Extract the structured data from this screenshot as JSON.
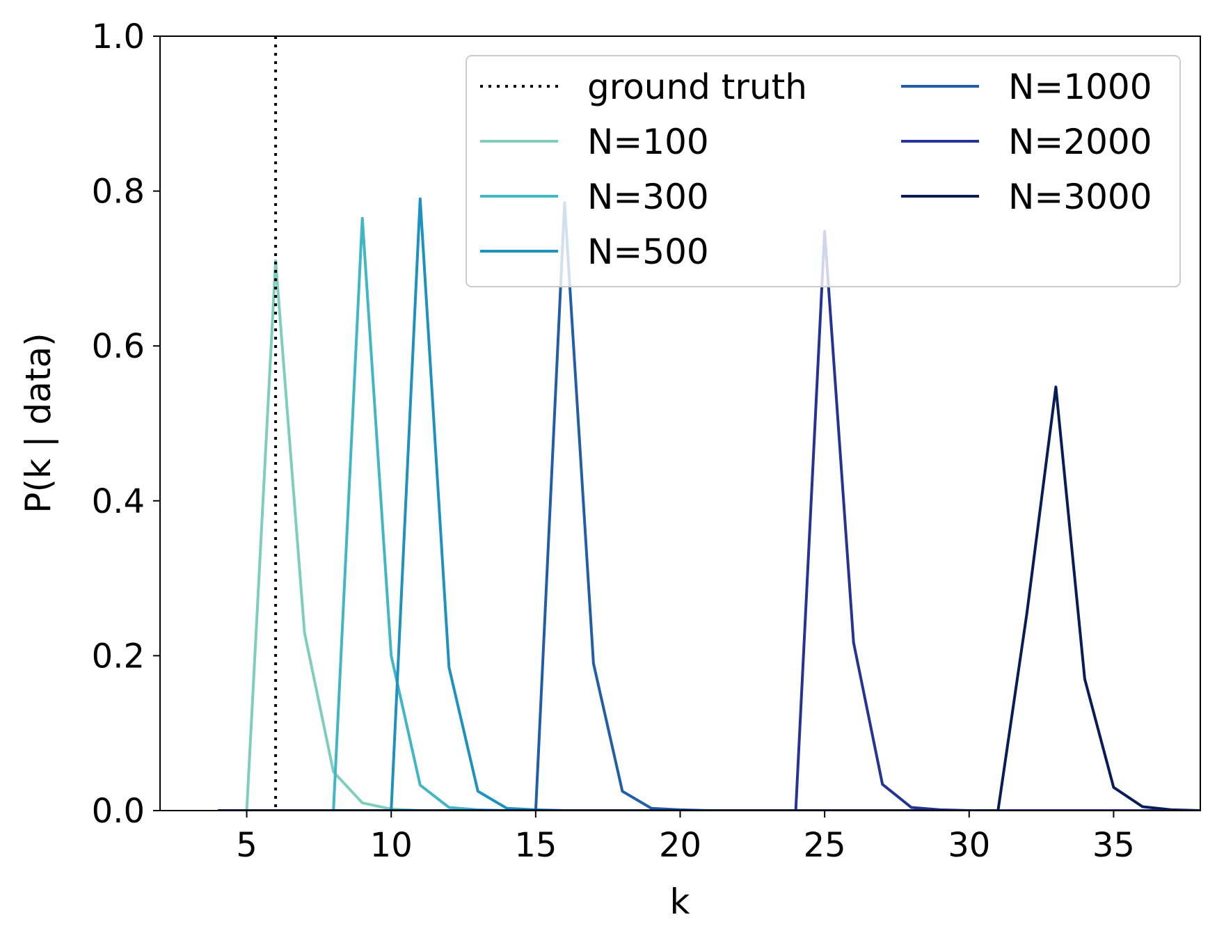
{
  "chart_data": {
    "type": "line",
    "xlabel": "k",
    "ylabel": "P(k | data)",
    "xlim": [
      2,
      38
    ],
    "ylim": [
      0,
      1.0
    ],
    "x_ticks": [
      5,
      10,
      15,
      20,
      25,
      30,
      35
    ],
    "x_tick_labels": [
      "5",
      "10",
      "15",
      "20",
      "25",
      "30",
      "35"
    ],
    "y_ticks": [
      0,
      0.2,
      0.4,
      0.6,
      0.8,
      1.0
    ],
    "y_tick_labels": [
      "0.0",
      "0.2",
      "0.4",
      "0.6",
      "0.8",
      "1.0"
    ],
    "grid": false,
    "legend_position": "top-right",
    "legend_columns": 2,
    "reference_line": {
      "name": "ground truth",
      "x": 6,
      "style": "dotted",
      "color": "#000000"
    },
    "series": [
      {
        "name": "N=100",
        "color": "#7fcdbb",
        "x": [
          4,
          5,
          6,
          7,
          8,
          9,
          10,
          11,
          12,
          13,
          14,
          15,
          16,
          17,
          18,
          19,
          20,
          21,
          22,
          23,
          24,
          25,
          26,
          27,
          28,
          29,
          30,
          31,
          32,
          33,
          34,
          35,
          36,
          37,
          38
        ],
        "y": [
          0,
          0,
          0.71,
          0.23,
          0.05,
          0.01,
          0.002,
          0,
          0,
          0,
          0,
          0,
          0,
          0,
          0,
          0,
          0,
          0,
          0,
          0,
          0,
          0,
          0,
          0,
          0,
          0,
          0,
          0,
          0,
          0,
          0,
          0,
          0,
          0,
          0
        ]
      },
      {
        "name": "N=300",
        "color": "#41b6c4",
        "x": [
          4,
          5,
          6,
          7,
          8,
          9,
          10,
          11,
          12,
          13,
          14,
          15,
          16,
          17,
          18,
          19,
          20,
          21,
          22,
          23,
          24,
          25,
          26,
          27,
          28,
          29,
          30,
          31,
          32,
          33,
          34,
          35,
          36,
          37,
          38
        ],
        "y": [
          0,
          0,
          0,
          0,
          0,
          0.765,
          0.2,
          0.033,
          0.004,
          0.001,
          0,
          0,
          0,
          0,
          0,
          0,
          0,
          0,
          0,
          0,
          0,
          0,
          0,
          0,
          0,
          0,
          0,
          0,
          0,
          0,
          0,
          0,
          0,
          0,
          0
        ]
      },
      {
        "name": "N=500",
        "color": "#1d91c0",
        "x": [
          4,
          5,
          6,
          7,
          8,
          9,
          10,
          11,
          12,
          13,
          14,
          15,
          16,
          17,
          18,
          19,
          20,
          21,
          22,
          23,
          24,
          25,
          26,
          27,
          28,
          29,
          30,
          31,
          32,
          33,
          34,
          35,
          36,
          37,
          38
        ],
        "y": [
          0,
          0,
          0,
          0,
          0,
          0,
          0,
          0.79,
          0.185,
          0.025,
          0.003,
          0.001,
          0,
          0,
          0,
          0,
          0,
          0,
          0,
          0,
          0,
          0,
          0,
          0,
          0,
          0,
          0,
          0,
          0,
          0,
          0,
          0,
          0,
          0,
          0
        ]
      },
      {
        "name": "N=1000",
        "color": "#225ea8",
        "x": [
          4,
          5,
          6,
          7,
          8,
          9,
          10,
          11,
          12,
          13,
          14,
          15,
          16,
          17,
          18,
          19,
          20,
          21,
          22,
          23,
          24,
          25,
          26,
          27,
          28,
          29,
          30,
          31,
          32,
          33,
          34,
          35,
          36,
          37,
          38
        ],
        "y": [
          0,
          0,
          0,
          0,
          0,
          0,
          0,
          0,
          0,
          0,
          0,
          0,
          0.785,
          0.19,
          0.025,
          0.003,
          0.001,
          0,
          0,
          0,
          0,
          0,
          0,
          0,
          0,
          0,
          0,
          0,
          0,
          0,
          0,
          0,
          0,
          0,
          0
        ]
      },
      {
        "name": "N=2000",
        "color": "#253494",
        "x": [
          4,
          5,
          6,
          7,
          8,
          9,
          10,
          11,
          12,
          13,
          14,
          15,
          16,
          17,
          18,
          19,
          20,
          21,
          22,
          23,
          24,
          25,
          26,
          27,
          28,
          29,
          30,
          31,
          32,
          33,
          34,
          35,
          36,
          37,
          38
        ],
        "y": [
          0,
          0,
          0,
          0,
          0,
          0,
          0,
          0,
          0,
          0,
          0,
          0,
          0,
          0,
          0,
          0,
          0,
          0,
          0,
          0,
          0,
          0.748,
          0.217,
          0.034,
          0.004,
          0.001,
          0,
          0,
          0,
          0,
          0,
          0,
          0,
          0,
          0
        ]
      },
      {
        "name": "N=3000",
        "color": "#081d58",
        "x": [
          4,
          5,
          6,
          7,
          8,
          9,
          10,
          11,
          12,
          13,
          14,
          15,
          16,
          17,
          18,
          19,
          20,
          21,
          22,
          23,
          24,
          25,
          26,
          27,
          28,
          29,
          30,
          31,
          32,
          33,
          34,
          35,
          36,
          37,
          38
        ],
        "y": [
          0,
          0,
          0,
          0,
          0,
          0,
          0,
          0,
          0,
          0,
          0,
          0,
          0,
          0,
          0,
          0,
          0,
          0,
          0,
          0,
          0,
          0,
          0,
          0,
          0,
          0,
          0,
          0,
          0.255,
          0.547,
          0.17,
          0.03,
          0.005,
          0.001,
          0
        ]
      }
    ]
  }
}
